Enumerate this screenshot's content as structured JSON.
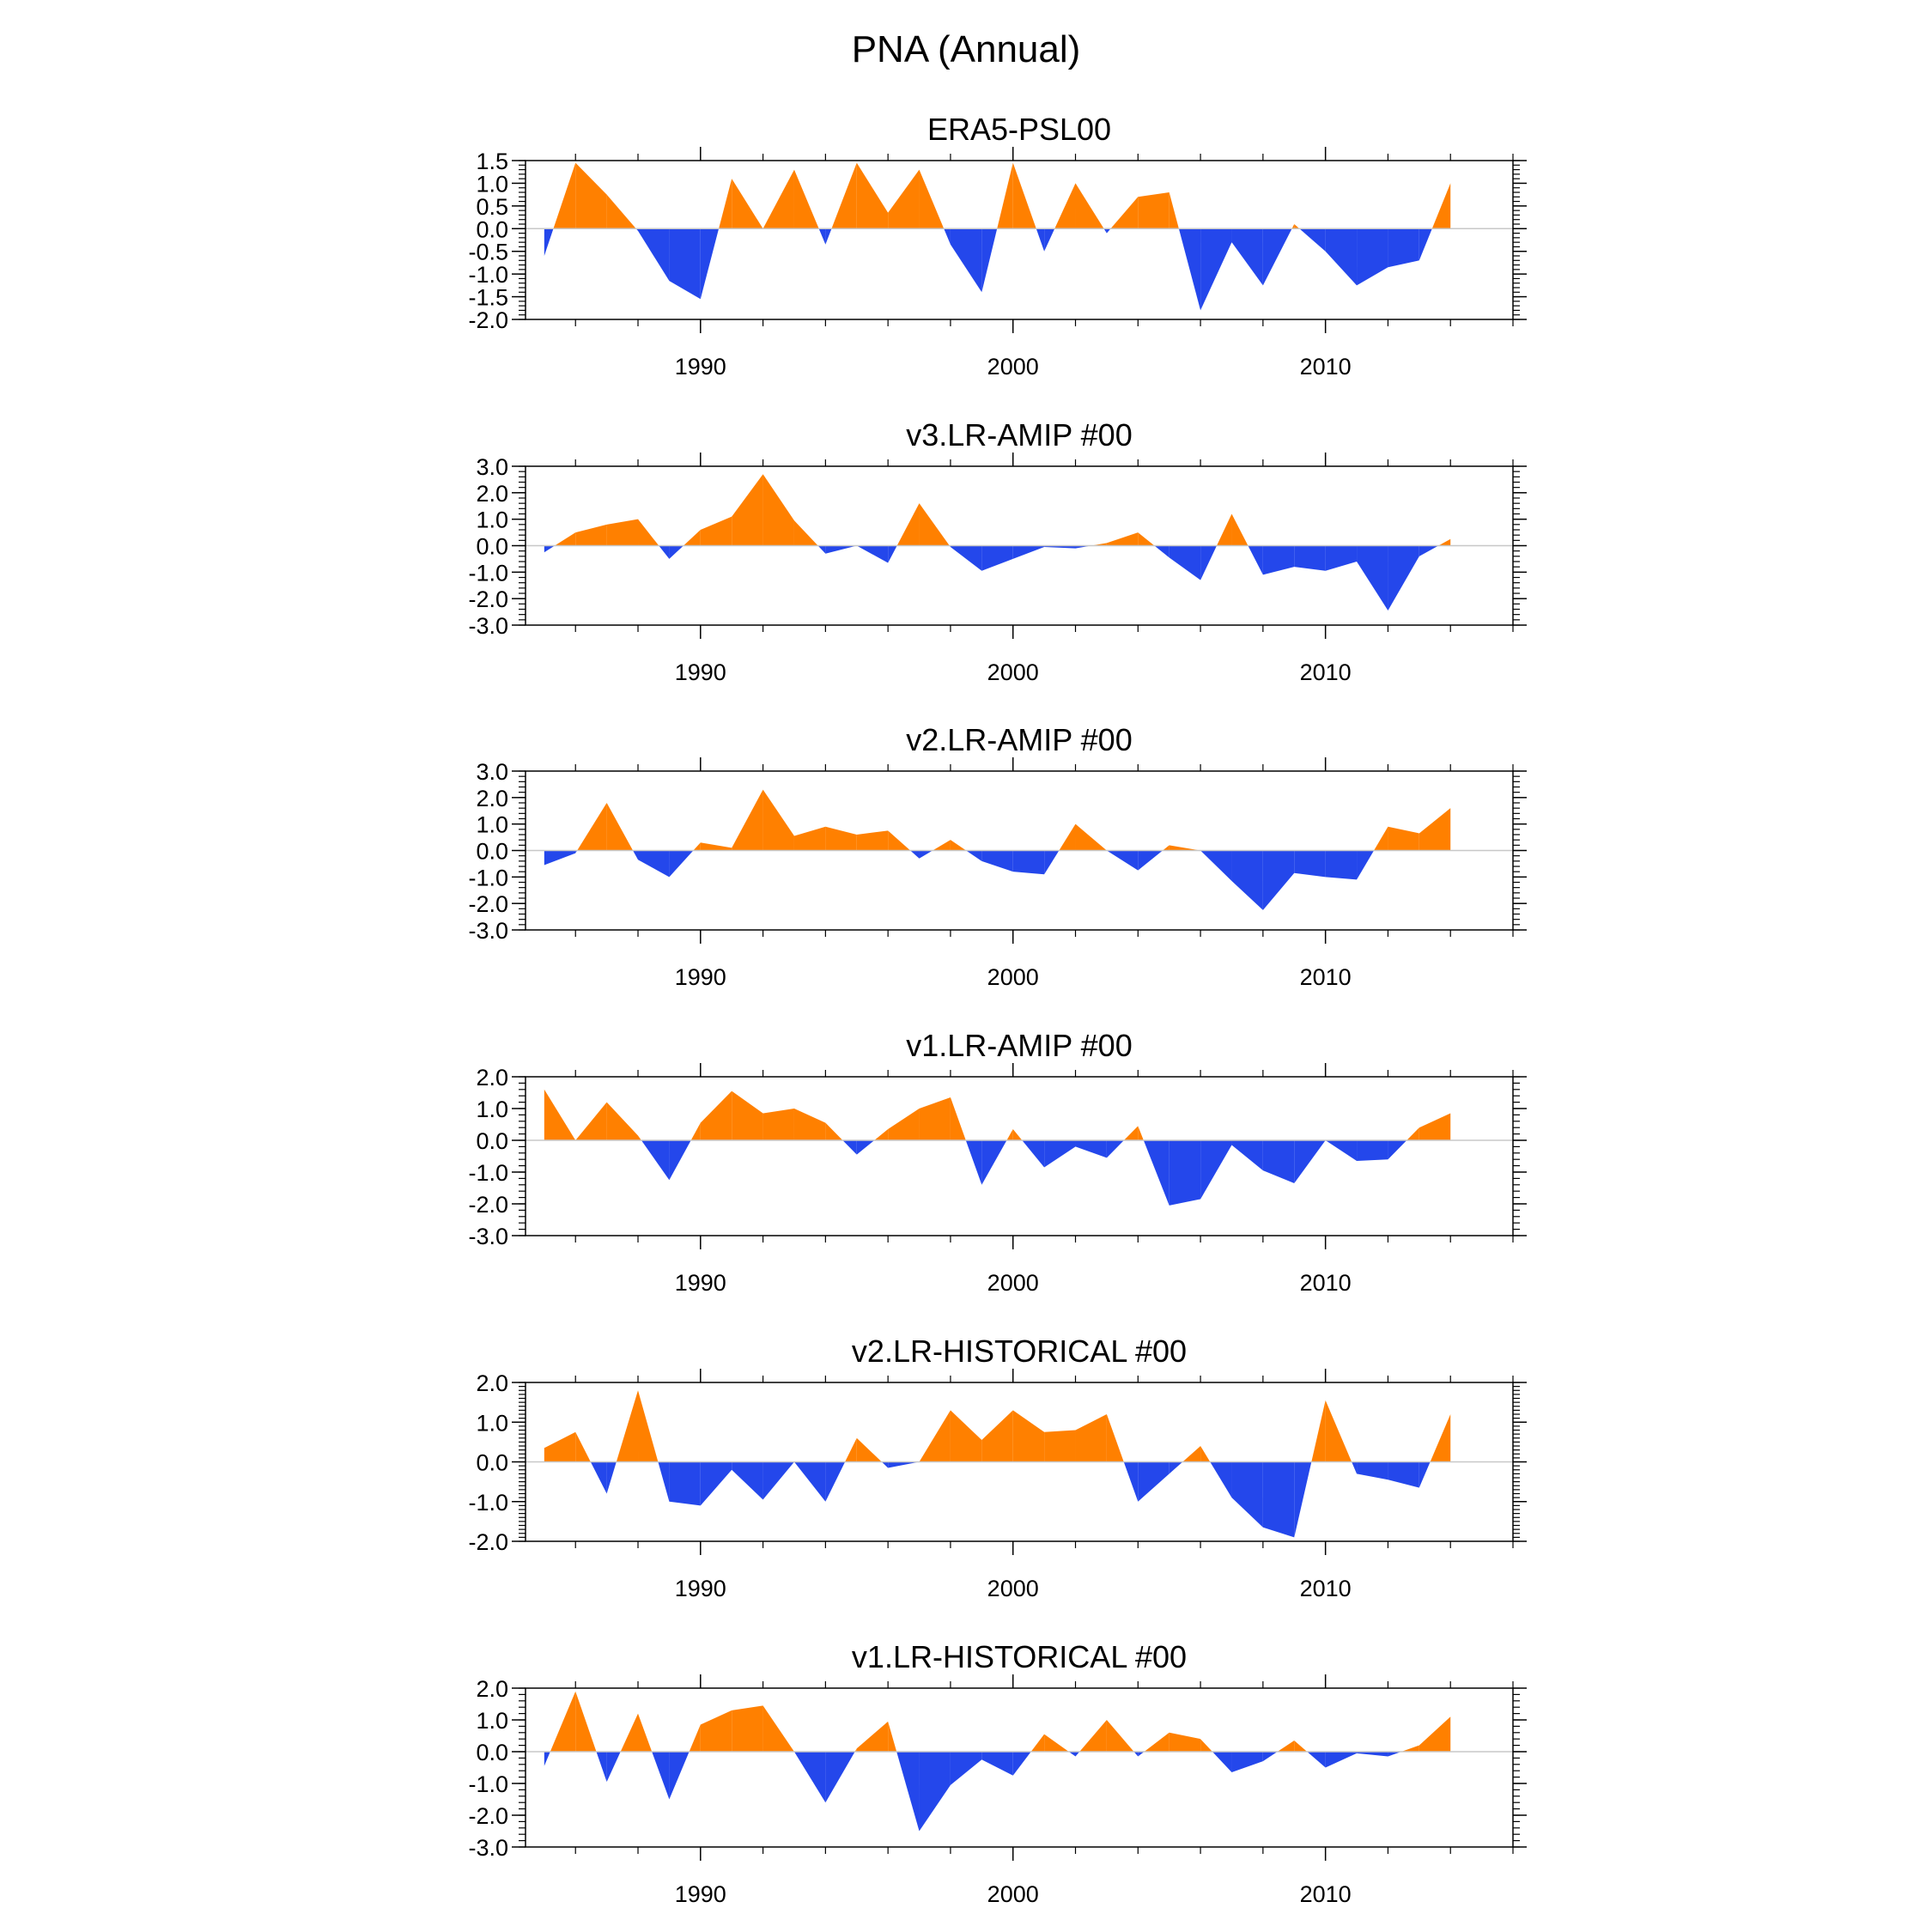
{
  "title": "PNA (Annual)",
  "colors": {
    "positive": "#ff8000",
    "negative": "#2447eb",
    "axis": "#000000",
    "zero_line": "#c8c8c8"
  },
  "chart_data": [
    {
      "type": "area",
      "title": "ERA5-PSL00",
      "x": [
        1985,
        1986,
        1987,
        1988,
        1989,
        1990,
        1991,
        1992,
        1993,
        1994,
        1995,
        1996,
        1997,
        1998,
        1999,
        2000,
        2001,
        2002,
        2003,
        2004,
        2005,
        2006,
        2007,
        2008,
        2009,
        2010,
        2011,
        2012,
        2013,
        2014
      ],
      "values": [
        -0.6,
        1.45,
        0.75,
        -0.05,
        -1.15,
        -1.55,
        1.1,
        0.0,
        1.3,
        -0.35,
        1.45,
        0.35,
        1.3,
        -0.35,
        -1.4,
        1.45,
        -0.5,
        1.0,
        -0.1,
        0.7,
        0.8,
        -1.8,
        -0.3,
        -1.25,
        0.1,
        -0.5,
        -1.25,
        -0.85,
        -0.7,
        1.0
      ],
      "xlim": [
        1984.4,
        2016.0
      ],
      "ylim": [
        -2.0,
        1.5
      ],
      "yticks": [
        "1.5",
        "1.0",
        "0.5",
        "0.0",
        "-0.5",
        "-1.0",
        "-1.5",
        "-2.0"
      ],
      "ytick_values": [
        1.5,
        1.0,
        0.5,
        0.0,
        -0.5,
        -1.0,
        -1.5,
        -2.0
      ],
      "xticks": [
        "1990",
        "2000",
        "2010"
      ],
      "xtick_values": [
        1990,
        2000,
        2010
      ]
    },
    {
      "type": "area",
      "title": "v3.LR-AMIP  #00",
      "x": [
        1985,
        1986,
        1987,
        1988,
        1989,
        1990,
        1991,
        1992,
        1993,
        1994,
        1995,
        1996,
        1997,
        1998,
        1999,
        2000,
        2001,
        2002,
        2003,
        2004,
        2005,
        2006,
        2007,
        2008,
        2009,
        2010,
        2011,
        2012,
        2013,
        2014
      ],
      "values": [
        -0.25,
        0.5,
        0.8,
        1.0,
        -0.5,
        0.6,
        1.1,
        2.7,
        0.95,
        -0.3,
        0.0,
        -0.65,
        1.6,
        -0.05,
        -0.95,
        -0.5,
        -0.05,
        -0.1,
        0.1,
        0.5,
        -0.45,
        -1.3,
        1.2,
        -1.1,
        -0.8,
        -0.95,
        -0.6,
        -2.45,
        -0.4,
        0.25
      ],
      "xlim": [
        1984.4,
        2016.0
      ],
      "ylim": [
        -3.0,
        3.0
      ],
      "yticks": [
        "3.0",
        "2.0",
        "1.0",
        "0.0",
        "-1.0",
        "-2.0",
        "-3.0"
      ],
      "ytick_values": [
        3.0,
        2.0,
        1.0,
        0.0,
        -1.0,
        -2.0,
        -3.0
      ],
      "xticks": [
        "1990",
        "2000",
        "2010"
      ],
      "xtick_values": [
        1990,
        2000,
        2010
      ]
    },
    {
      "type": "area",
      "title": "v2.LR-AMIP  #00",
      "x": [
        1985,
        1986,
        1987,
        1988,
        1989,
        1990,
        1991,
        1992,
        1993,
        1994,
        1995,
        1996,
        1997,
        1998,
        1999,
        2000,
        2001,
        2002,
        2003,
        2004,
        2005,
        2006,
        2007,
        2008,
        2009,
        2010,
        2011,
        2012,
        2013,
        2014
      ],
      "values": [
        -0.55,
        -0.1,
        1.8,
        -0.35,
        -1.0,
        0.3,
        0.1,
        2.3,
        0.55,
        0.9,
        0.6,
        0.75,
        -0.3,
        0.4,
        -0.4,
        -0.8,
        -0.9,
        1.0,
        0.0,
        -0.75,
        0.2,
        0.0,
        -1.15,
        -2.25,
        -0.85,
        -1.0,
        -1.1,
        0.9,
        0.65,
        1.6
      ],
      "xlim": [
        1984.4,
        2016.0
      ],
      "ylim": [
        -3.0,
        3.0
      ],
      "yticks": [
        "3.0",
        "2.0",
        "1.0",
        "0.0",
        "-1.0",
        "-2.0",
        "-3.0"
      ],
      "ytick_values": [
        3.0,
        2.0,
        1.0,
        0.0,
        -1.0,
        -2.0,
        -3.0
      ],
      "xticks": [
        "1990",
        "2000",
        "2010"
      ],
      "xtick_values": [
        1990,
        2000,
        2010
      ]
    },
    {
      "type": "area",
      "title": "v1.LR-AMIP  #00",
      "x": [
        1985,
        1986,
        1987,
        1988,
        1989,
        1990,
        1991,
        1992,
        1993,
        1994,
        1995,
        1996,
        1997,
        1998,
        1999,
        2000,
        2001,
        2002,
        2003,
        2004,
        2005,
        2006,
        2007,
        2008,
        2009,
        2010,
        2011,
        2012,
        2013,
        2014
      ],
      "values": [
        1.6,
        0.0,
        1.2,
        0.15,
        -1.25,
        0.55,
        1.55,
        0.85,
        1.0,
        0.55,
        -0.45,
        0.35,
        1.0,
        1.35,
        -1.4,
        0.35,
        -0.85,
        -0.2,
        -0.55,
        0.45,
        -2.05,
        -1.85,
        -0.15,
        -0.95,
        -1.35,
        0.0,
        -0.65,
        -0.6,
        0.4,
        0.85
      ],
      "xlim": [
        1984.4,
        2016.0
      ],
      "ylim": [
        -3.0,
        2.0
      ],
      "yticks": [
        "2.0",
        "1.0",
        "0.0",
        "-1.0",
        "-2.0",
        "-3.0"
      ],
      "ytick_values": [
        2.0,
        1.0,
        0.0,
        -1.0,
        -2.0,
        -3.0
      ],
      "xticks": [
        "1990",
        "2000",
        "2010"
      ],
      "xtick_values": [
        1990,
        2000,
        2010
      ]
    },
    {
      "type": "area",
      "title": "v2.LR-HISTORICAL  #00",
      "x": [
        1985,
        1986,
        1987,
        1988,
        1989,
        1990,
        1991,
        1992,
        1993,
        1994,
        1995,
        1996,
        1997,
        1998,
        1999,
        2000,
        2001,
        2002,
        2003,
        2004,
        2005,
        2006,
        2007,
        2008,
        2009,
        2010,
        2011,
        2012,
        2013,
        2014
      ],
      "values": [
        0.35,
        0.75,
        -0.8,
        1.8,
        -1.0,
        -1.1,
        -0.2,
        -0.95,
        0.0,
        -1.0,
        0.6,
        -0.15,
        0.0,
        1.3,
        0.55,
        1.3,
        0.75,
        0.8,
        1.2,
        -1.0,
        -0.3,
        0.4,
        -0.9,
        -1.65,
        -1.9,
        1.55,
        -0.3,
        -0.45,
        -0.65,
        1.2
      ],
      "xlim": [
        1984.4,
        2016.0
      ],
      "ylim": [
        -2.0,
        2.0
      ],
      "yticks": [
        "2.0",
        "1.0",
        "0.0",
        "-1.0",
        "-2.0"
      ],
      "ytick_values": [
        2.0,
        1.0,
        0.0,
        -1.0,
        -2.0
      ],
      "xticks": [
        "1990",
        "2000",
        "2010"
      ],
      "xtick_values": [
        1990,
        2000,
        2010
      ]
    },
    {
      "type": "area",
      "title": "v1.LR-HISTORICAL  #00",
      "x": [
        1985,
        1986,
        1987,
        1988,
        1989,
        1990,
        1991,
        1992,
        1993,
        1994,
        1995,
        1996,
        1997,
        1998,
        1999,
        2000,
        2001,
        2002,
        2003,
        2004,
        2005,
        2006,
        2007,
        2008,
        2009,
        2010,
        2011,
        2012,
        2013,
        2014
      ],
      "values": [
        -0.45,
        1.9,
        -0.95,
        1.2,
        -1.5,
        0.85,
        1.3,
        1.45,
        0.0,
        -1.6,
        0.1,
        0.95,
        -2.5,
        -1.05,
        -0.25,
        -0.75,
        0.55,
        -0.15,
        1.0,
        -0.15,
        0.6,
        0.4,
        -0.65,
        -0.3,
        0.35,
        -0.5,
        -0.05,
        -0.15,
        0.2,
        1.1
      ],
      "xlim": [
        1984.4,
        2016.0
      ],
      "ylim": [
        -3.0,
        2.0
      ],
      "yticks": [
        "2.0",
        "1.0",
        "0.0",
        "-1.0",
        "-2.0",
        "-3.0"
      ],
      "ytick_values": [
        2.0,
        1.0,
        0.0,
        -1.0,
        -2.0,
        -3.0
      ],
      "xticks": [
        "1990",
        "2000",
        "2010"
      ],
      "xtick_values": [
        1990,
        2000,
        2010
      ]
    }
  ]
}
